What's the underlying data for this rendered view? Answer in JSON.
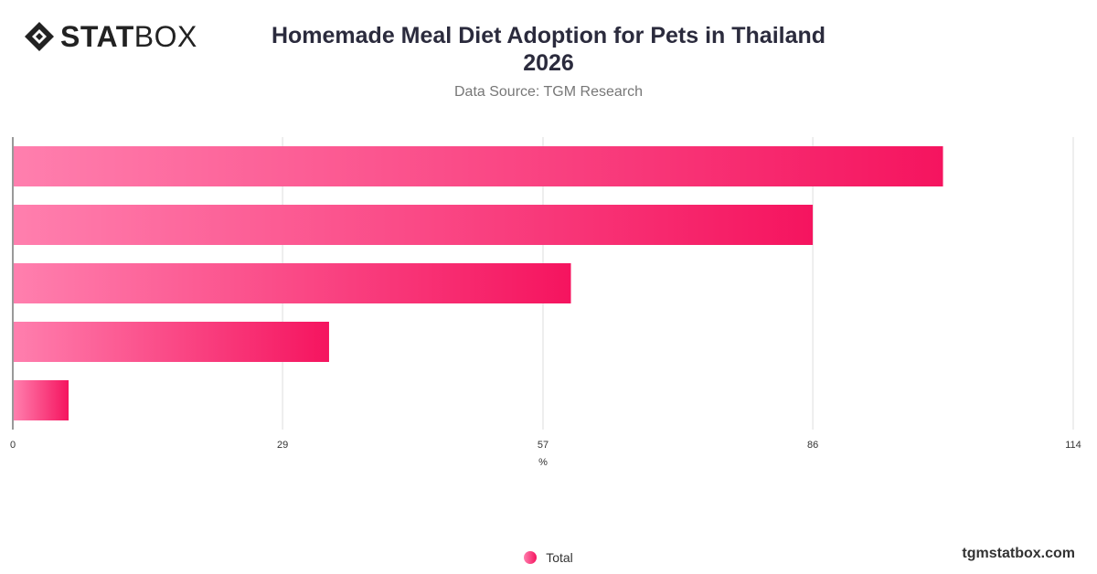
{
  "brand": {
    "strong": "STAT",
    "light": "BOX"
  },
  "footer": "tgmstatbox.com",
  "chart_data": {
    "type": "bar",
    "orientation": "horizontal",
    "title": "Homemade Meal Diet Adoption for Pets in Thailand 2026",
    "subtitle": "Data Source: TGM Research",
    "xlabel": "%",
    "ylabel": "",
    "xlim": [
      0,
      114
    ],
    "xticks": [
      0,
      29,
      57,
      86,
      114
    ],
    "categories": [
      "",
      "",
      "",
      "",
      ""
    ],
    "series": [
      {
        "name": "Total",
        "values": [
          100,
          86,
          60,
          34,
          6
        ]
      }
    ],
    "grid": true,
    "legend": "bottom-center",
    "colors": {
      "bar_start": "#ff7fae",
      "bar_end": "#f5145f",
      "grid": "#dddddd",
      "axis": "#333333"
    }
  }
}
